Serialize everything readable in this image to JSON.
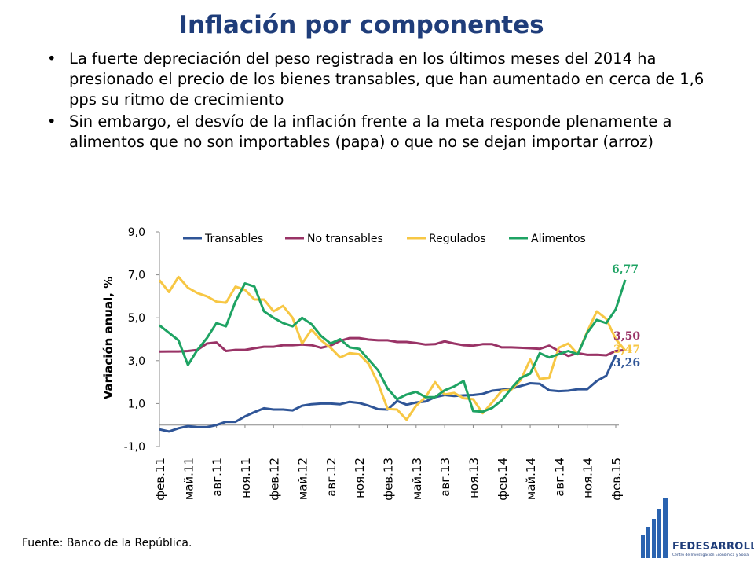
{
  "title": "Inflación por componentes",
  "bullets": [
    "La fuerte depreciación del peso registrada en los últimos meses del 2014 ha presionado el precio de los bienes transables, que han aumentado en cerca de 1,6 pps su ritmo de crecimiento",
    "Sin embargo, el desvío de la inflación frente a la meta responde plenamente a alimentos que no son importables (papa) o que no se dejan importar (arroz)"
  ],
  "bullet_glyph": "•",
  "source": "Fuente: Banco de la República.",
  "logo": {
    "name": "FEDESARROLLO",
    "subtitle": "Centro de Investigación Económica y Social",
    "icon": "bar-building-logo-icon"
  },
  "chart_data": {
    "type": "line",
    "ylabel": "Variación anual, %",
    "xlabel": "",
    "ylim": [
      -1,
      9
    ],
    "yticks": [
      "-1,0",
      "1,0",
      "3,0",
      "5,0",
      "7,0",
      "9,0"
    ],
    "ytick_values": [
      -1,
      1,
      3,
      5,
      7,
      9
    ],
    "x_tick_labels": [
      "фев.11",
      "май.11",
      "авг.11",
      "ноя.11",
      "фев.12",
      "май.12",
      "авг.12",
      "ноя.12",
      "фев.13",
      "май.13",
      "авг.13",
      "ноя.13",
      "фев.14",
      "май.14",
      "авг.14",
      "ноя.14",
      "фев.15"
    ],
    "legend_position": "top",
    "grid": false,
    "series": [
      {
        "name": "Transables",
        "color": "#2f5597",
        "end_label": "3,26",
        "values": [
          -0.2,
          -0.3,
          -0.15,
          -0.05,
          -0.1,
          -0.1,
          0.0,
          0.15,
          0.15,
          0.4,
          0.6,
          0.78,
          0.72,
          0.72,
          0.68,
          0.9,
          0.97,
          1.0,
          1.0,
          0.97,
          1.08,
          1.03,
          0.9,
          0.74,
          0.72,
          1.12,
          0.95,
          1.05,
          1.1,
          1.3,
          1.4,
          1.35,
          1.38,
          1.4,
          1.45,
          1.6,
          1.65,
          1.7,
          1.82,
          1.95,
          1.92,
          1.62,
          1.58,
          1.6,
          1.67,
          1.67,
          2.05,
          2.3,
          3.26
        ]
      },
      {
        "name": "No transables",
        "color": "#993366",
        "end_label": "3,50",
        "values": [
          3.42,
          3.43,
          3.43,
          3.45,
          3.5,
          3.8,
          3.85,
          3.45,
          3.5,
          3.5,
          3.58,
          3.65,
          3.65,
          3.72,
          3.72,
          3.75,
          3.72,
          3.6,
          3.7,
          3.92,
          4.05,
          4.05,
          3.98,
          3.95,
          3.95,
          3.87,
          3.87,
          3.82,
          3.75,
          3.77,
          3.9,
          3.8,
          3.72,
          3.7,
          3.77,
          3.77,
          3.62,
          3.62,
          3.6,
          3.58,
          3.55,
          3.7,
          3.45,
          3.22,
          3.35,
          3.27,
          3.28,
          3.25,
          3.45,
          3.5
        ]
      },
      {
        "name": "Regulados",
        "color": "#f7c744",
        "end_label": "3,47",
        "values": [
          6.75,
          6.2,
          6.9,
          6.4,
          6.15,
          6.0,
          5.75,
          5.7,
          6.45,
          6.3,
          5.85,
          5.85,
          5.3,
          5.55,
          5.0,
          3.8,
          4.45,
          3.95,
          3.6,
          3.15,
          3.35,
          3.3,
          2.85,
          1.95,
          0.75,
          0.72,
          0.25,
          0.9,
          1.3,
          2.0,
          1.42,
          1.5,
          1.25,
          1.2,
          0.55,
          1.05,
          1.6,
          1.65,
          2.1,
          3.05,
          2.15,
          2.2,
          3.6,
          3.8,
          3.3,
          4.35,
          5.3,
          4.95,
          4.0,
          3.47
        ]
      },
      {
        "name": "Alimentos",
        "color": "#1ea363",
        "end_label": "6,77",
        "values": [
          4.65,
          4.3,
          3.95,
          2.8,
          3.5,
          4.05,
          4.75,
          4.6,
          5.75,
          6.6,
          6.45,
          5.3,
          5.0,
          4.75,
          4.6,
          5.0,
          4.7,
          4.15,
          3.8,
          4.0,
          3.62,
          3.55,
          3.05,
          2.55,
          1.7,
          1.2,
          1.42,
          1.55,
          1.3,
          1.3,
          1.62,
          1.8,
          2.05,
          0.65,
          0.62,
          0.8,
          1.15,
          1.7,
          2.2,
          2.4,
          3.35,
          3.15,
          3.3,
          3.45,
          3.3,
          4.3,
          4.9,
          4.75,
          5.4,
          6.77
        ]
      }
    ]
  }
}
